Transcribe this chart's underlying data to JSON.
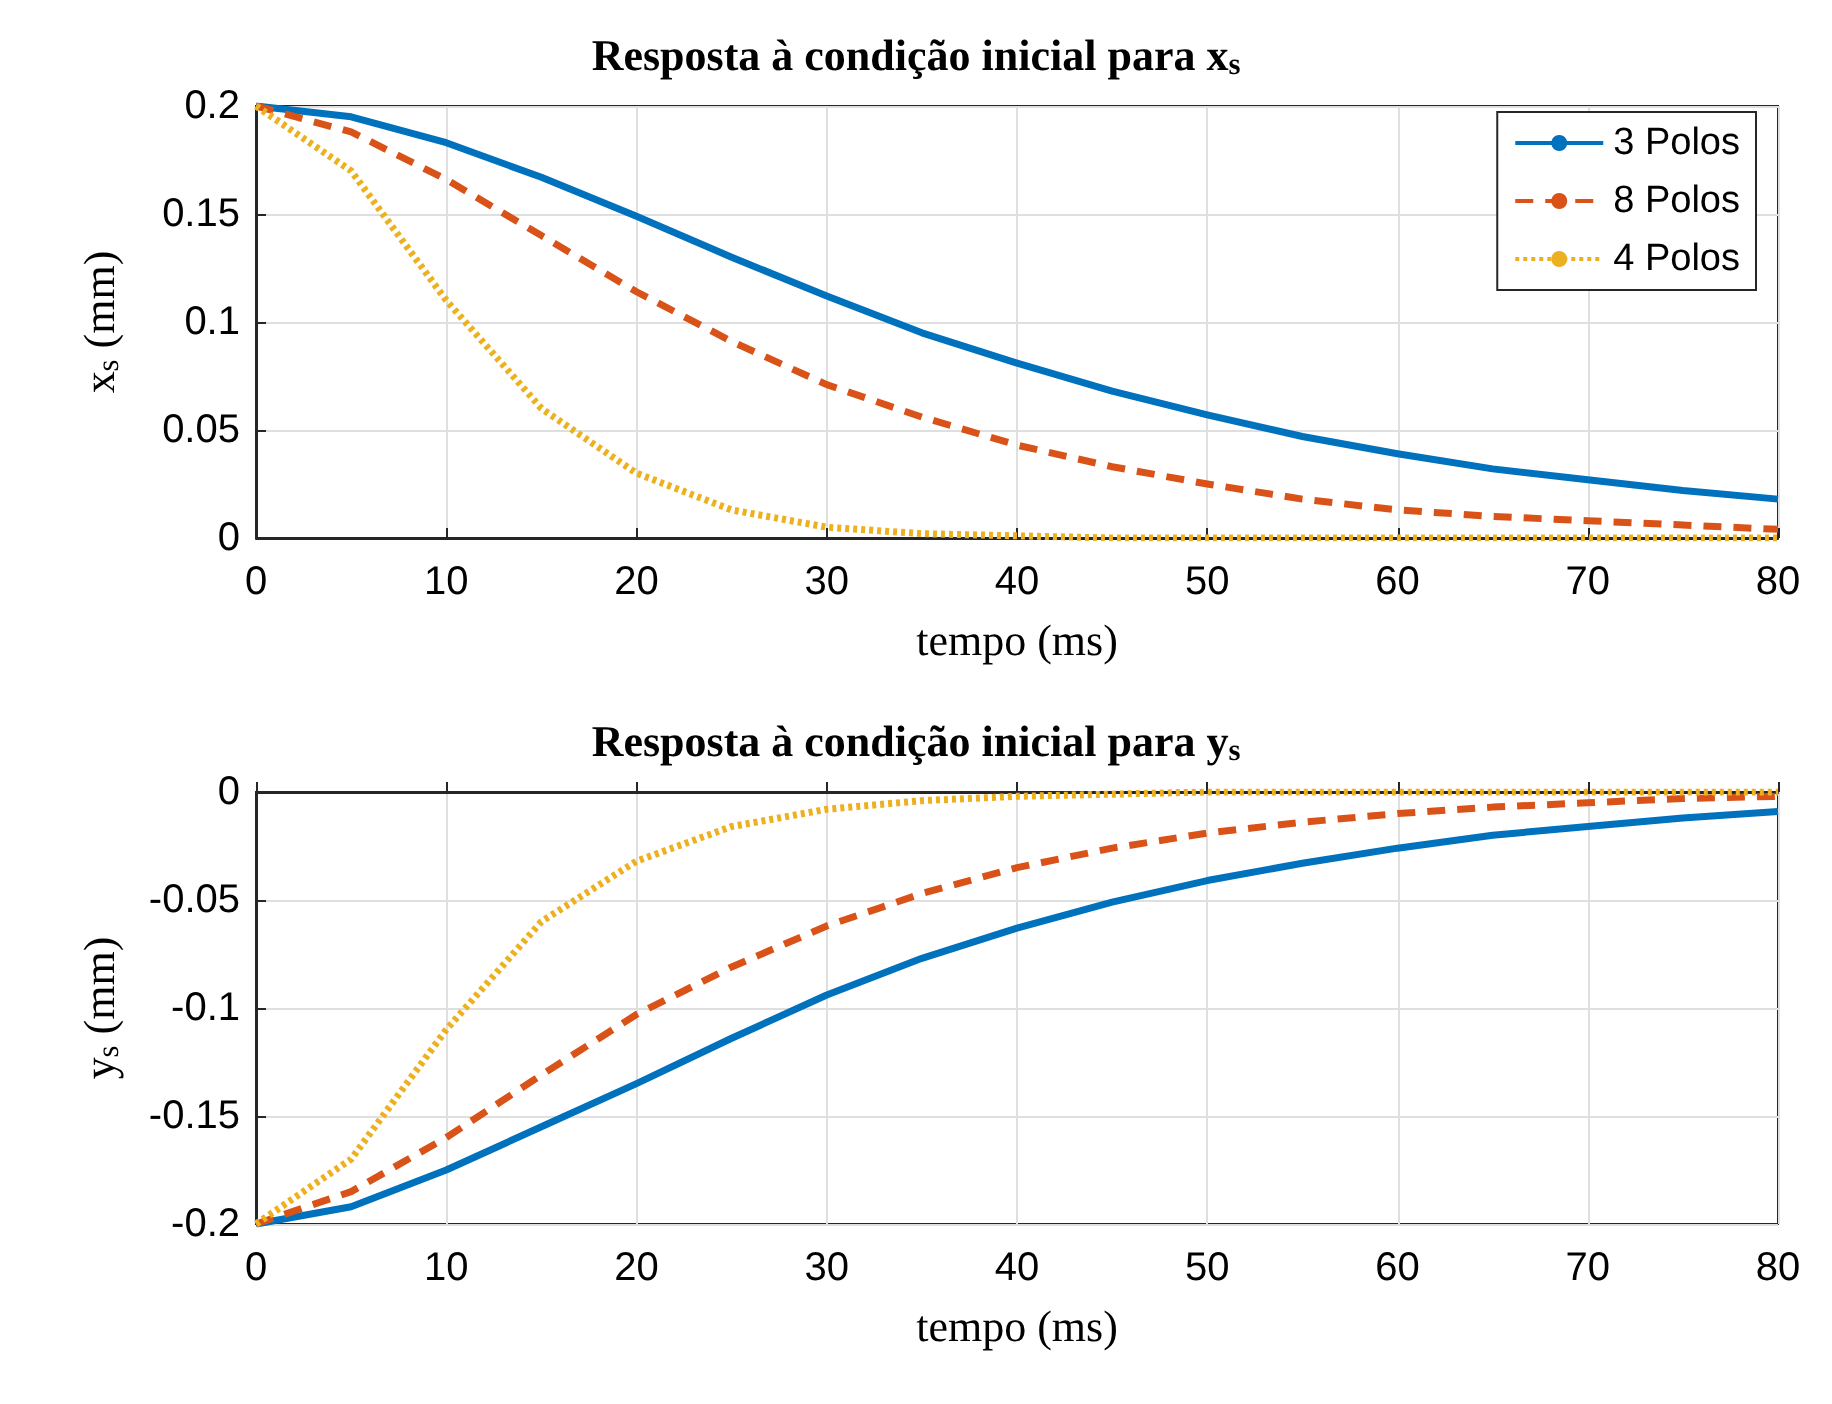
{
  "chart_data": [
    {
      "type": "line",
      "title": "Resposta à condição inicial para x$_{s}$",
      "xlabel": "tempo (ms)",
      "ylabel": "x$_{s}$ (mm)",
      "x": [
        0,
        5,
        10,
        15,
        20,
        25,
        30,
        35,
        40,
        45,
        50,
        55,
        60,
        65,
        70,
        75,
        80
      ],
      "series": [
        {
          "name": "3 Polos",
          "color": "#0072bd",
          "line_style": "solid",
          "values": [
            0.2,
            0.195,
            0.183,
            0.167,
            0.149,
            0.13,
            0.112,
            0.095,
            0.081,
            0.068,
            0.057,
            0.047,
            0.039,
            0.032,
            0.027,
            0.022,
            0.018
          ]
        },
        {
          "name": "8 Polos",
          "color": "#d95319",
          "line_style": "dashed",
          "values": [
            0.2,
            0.188,
            0.166,
            0.14,
            0.114,
            0.091,
            0.071,
            0.056,
            0.043,
            0.033,
            0.025,
            0.018,
            0.013,
            0.01,
            0.008,
            0.006,
            0.004
          ]
        },
        {
          "name": "4 Polos",
          "color": "#edb120",
          "line_style": "dotted",
          "values": [
            0.2,
            0.17,
            0.11,
            0.06,
            0.03,
            0.013,
            0.005,
            0.002,
            0.001,
            0,
            0,
            0,
            0,
            0,
            0,
            0,
            0
          ]
        }
      ],
      "xlim": [
        0,
        80
      ],
      "ylim": [
        0,
        0.2
      ],
      "xticks": [
        0,
        10,
        20,
        30,
        40,
        50,
        60,
        70,
        80
      ],
      "yticks": [
        0,
        0.05,
        0.1,
        0.15,
        0.2
      ],
      "grid": true,
      "legend": "top right",
      "marker": "none"
    },
    {
      "type": "line",
      "title": "Resposta à condição inicial para y$_{s}$",
      "xlabel": "tempo (ms)",
      "ylabel": "y$_{s}$ (mm)",
      "x": [
        0,
        5,
        10,
        15,
        20,
        25,
        30,
        35,
        40,
        45,
        50,
        55,
        60,
        65,
        70,
        75,
        80
      ],
      "series": [
        {
          "color": "#0072bd",
          "line_style": "solid",
          "values": [
            -0.2,
            -0.192,
            -0.175,
            -0.155,
            -0.135,
            -0.114,
            -0.094,
            -0.077,
            -0.063,
            -0.051,
            -0.041,
            -0.033,
            -0.026,
            -0.02,
            -0.016,
            -0.012,
            -0.009
          ]
        },
        {
          "color": "#d95319",
          "line_style": "dashed",
          "values": [
            -0.2,
            -0.185,
            -0.16,
            -0.131,
            -0.103,
            -0.081,
            -0.062,
            -0.047,
            -0.035,
            -0.026,
            -0.019,
            -0.014,
            -0.01,
            -0.007,
            -0.005,
            -0.003,
            -0.002
          ]
        },
        {
          "color": "#edb120",
          "line_style": "dotted",
          "values": [
            -0.2,
            -0.17,
            -0.11,
            -0.06,
            -0.032,
            -0.016,
            -0.008,
            -0.004,
            -0.002,
            -0.001,
            0,
            0,
            0,
            0,
            0,
            0,
            0
          ]
        }
      ],
      "xlim": [
        0,
        80
      ],
      "ylim": [
        -0.2,
        0
      ],
      "xticks": [
        0,
        10,
        20,
        30,
        40,
        50,
        60,
        70,
        80
      ],
      "yticks": [
        -0.2,
        -0.15,
        -0.1,
        -0.05,
        0
      ],
      "grid": true,
      "marker": "none"
    }
  ]
}
